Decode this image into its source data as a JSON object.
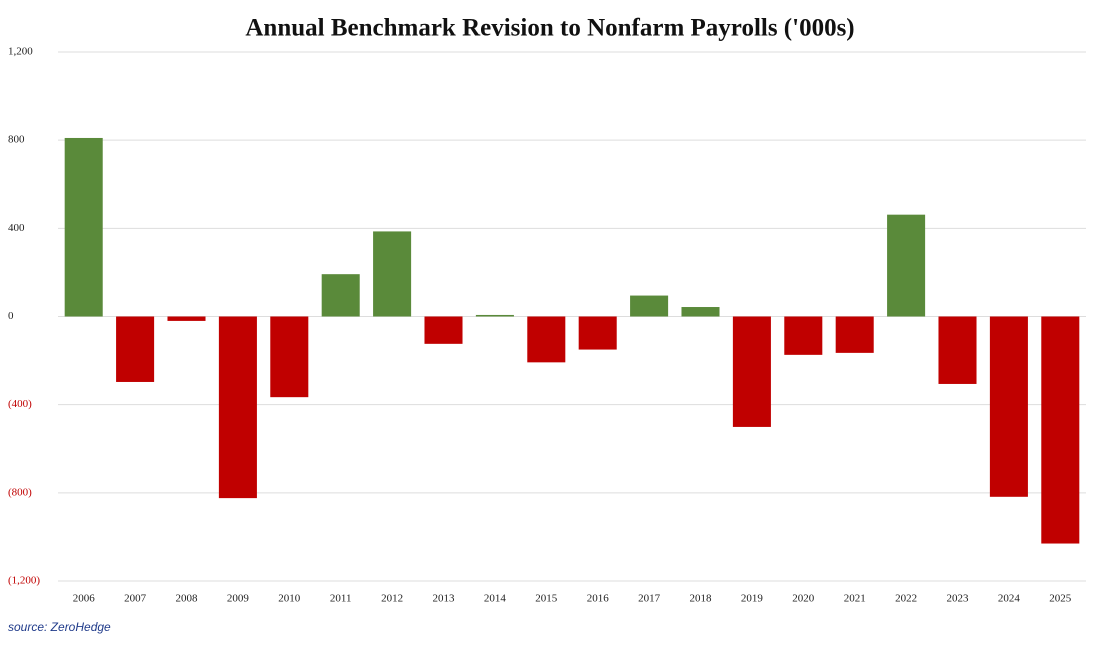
{
  "chart_data": {
    "type": "bar",
    "title": "Annual Benchmark Revision to Nonfarm Payrolls ('000s)",
    "source": "source: ZeroHedge",
    "categories": [
      "2006",
      "2007",
      "2008",
      "2009",
      "2010",
      "2011",
      "2012",
      "2013",
      "2014",
      "2015",
      "2016",
      "2017",
      "2018",
      "2019",
      "2020",
      "2021",
      "2022",
      "2023",
      "2024",
      "2025"
    ],
    "values": [
      810,
      -297,
      -20,
      -824,
      -366,
      192,
      386,
      -124,
      7,
      -208,
      -150,
      95,
      43,
      -501,
      -174,
      -165,
      462,
      -306,
      -818,
      -1030
    ],
    "positive_color": "#5a8a3a",
    "negative_color": "#c00000",
    "ylim": [
      -1200,
      1200
    ],
    "yticks": [
      {
        "value": -1200,
        "label": "(1,200)"
      },
      {
        "value": -800,
        "label": "(800)"
      },
      {
        "value": -400,
        "label": "(400)"
      },
      0,
      400,
      800,
      {
        "value": 1200,
        "label": "1,200"
      }
    ],
    "grid": true
  }
}
